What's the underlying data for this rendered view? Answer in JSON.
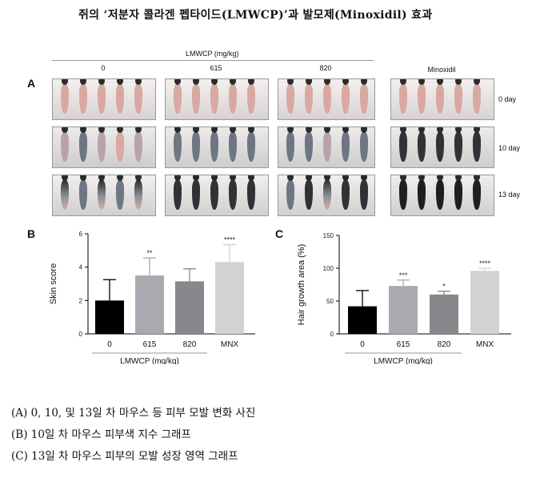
{
  "title": "쥐의 ‘저분자 콜라겐 펩타이드(LMWCP)’과 발모제(Minoxidil) 효과",
  "panel_a": {
    "letter": "A",
    "lmwcp_header": "LMWCP (mg/kg)",
    "groups": [
      "0",
      "615",
      "820",
      "Minoxidil"
    ],
    "days": [
      "0 day",
      "10 day",
      "13 day"
    ]
  },
  "captions": [
    "(A) 0, 10, 및 13일 차 마우스 등 피부 모발 변화 사진",
    "(B) 10일 차 마우스 피부색 지수 그래프",
    "(C) 13일 차 마우스 피부의 모발 성장 영역 그래프"
  ],
  "chart_data": [
    {
      "type": "bar",
      "panel": "B",
      "categories": [
        "0",
        "615",
        "820",
        "MNX"
      ],
      "values": [
        2.0,
        3.5,
        3.15,
        4.3
      ],
      "error": [
        1.25,
        1.05,
        0.75,
        1.05
      ],
      "significance": [
        "",
        "**",
        "",
        "****"
      ],
      "bar_colors": [
        "#000000",
        "#a9a9af",
        "#87878c",
        "#d2d2d2"
      ],
      "ylabel": "Skin score",
      "xlabel": "LMWCP (mg/kg)",
      "ylim": [
        0,
        6
      ],
      "yticks": [
        "0",
        "2",
        "4",
        "6"
      ]
    },
    {
      "type": "bar",
      "panel": "C",
      "categories": [
        "0",
        "615",
        "820",
        "MNX"
      ],
      "values": [
        42,
        73,
        60,
        96
      ],
      "error": [
        24,
        9,
        5,
        4
      ],
      "significance": [
        "",
        "***",
        "*",
        "****"
      ],
      "bar_colors": [
        "#000000",
        "#a9a9af",
        "#87878c",
        "#d2d2d2"
      ],
      "ylabel": "Hair growth area (%)",
      "xlabel": "LMWCP (mg/kg)",
      "ylim": [
        0,
        150
      ],
      "yticks": [
        "0",
        "50",
        "100",
        "150"
      ]
    }
  ]
}
